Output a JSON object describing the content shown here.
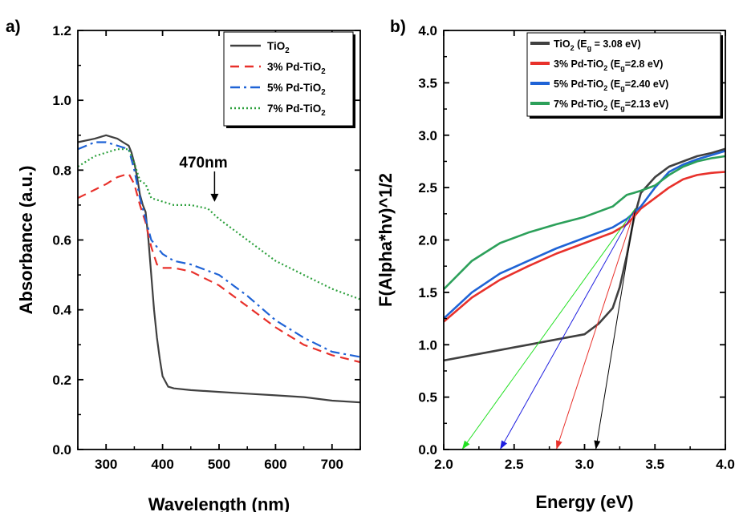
{
  "chart_data": [
    {
      "panel_label": "a)",
      "type": "line",
      "xlabel": "Wavelength (nm)",
      "ylabel": "Absorbance (a.u.)",
      "xlim": [
        250,
        750
      ],
      "ylim": [
        0.0,
        1.2
      ],
      "xticks": [
        300,
        400,
        500,
        600,
        700
      ],
      "yticks": [
        "0.0",
        "0.2",
        "0.4",
        "0.6",
        "0.8",
        "1.0",
        "1.2"
      ],
      "legend_position": "top-right",
      "annotation": {
        "text": "470nm",
        "x": 475,
        "y": 0.7
      },
      "series": [
        {
          "name": "TiO2",
          "color": "#404040",
          "dash": "solid",
          "x": [
            250,
            280,
            300,
            320,
            330,
            340,
            345,
            350,
            355,
            360,
            365,
            370,
            375,
            380,
            385,
            390,
            395,
            400,
            410,
            420,
            450,
            500,
            550,
            600,
            650,
            700,
            750
          ],
          "y": [
            0.88,
            0.89,
            0.9,
            0.89,
            0.88,
            0.87,
            0.85,
            0.82,
            0.78,
            0.73,
            0.7,
            0.68,
            0.6,
            0.5,
            0.4,
            0.32,
            0.26,
            0.21,
            0.18,
            0.175,
            0.17,
            0.165,
            0.16,
            0.155,
            0.15,
            0.14,
            0.135
          ]
        },
        {
          "name": "3% Pd-TiO2",
          "color": "#e8312b",
          "dash": "dashed",
          "x": [
            250,
            300,
            320,
            340,
            350,
            360,
            370,
            380,
            390,
            400,
            420,
            450,
            500,
            550,
            600,
            650,
            700,
            750
          ],
          "y": [
            0.72,
            0.76,
            0.78,
            0.79,
            0.76,
            0.7,
            0.65,
            0.58,
            0.53,
            0.52,
            0.52,
            0.51,
            0.47,
            0.41,
            0.35,
            0.3,
            0.27,
            0.25
          ]
        },
        {
          "name": "5% Pd-TiO2",
          "color": "#1f63d6",
          "dash": "dashdot",
          "x": [
            250,
            280,
            300,
            320,
            340,
            350,
            360,
            370,
            380,
            390,
            400,
            420,
            450,
            500,
            550,
            600,
            650,
            700,
            750
          ],
          "y": [
            0.86,
            0.88,
            0.88,
            0.87,
            0.86,
            0.8,
            0.72,
            0.66,
            0.6,
            0.58,
            0.56,
            0.54,
            0.53,
            0.5,
            0.44,
            0.37,
            0.32,
            0.28,
            0.265
          ]
        },
        {
          "name": "7% Pd-TiO2",
          "color": "#2ca03c",
          "dash": "dotted",
          "x": [
            250,
            280,
            300,
            320,
            340,
            350,
            360,
            370,
            380,
            400,
            420,
            450,
            480,
            500,
            550,
            600,
            650,
            700,
            750
          ],
          "y": [
            0.81,
            0.84,
            0.85,
            0.86,
            0.86,
            0.82,
            0.77,
            0.76,
            0.72,
            0.71,
            0.7,
            0.7,
            0.69,
            0.66,
            0.6,
            0.54,
            0.5,
            0.46,
            0.43
          ]
        }
      ]
    },
    {
      "panel_label": "b)",
      "type": "line",
      "xlabel": "Energy (eV)",
      "ylabel": "F(Alpha*hv)^1/2",
      "xlim": [
        2.0,
        4.0
      ],
      "ylim": [
        0.0,
        4.0
      ],
      "xticks": [
        "2.0",
        "2.5",
        "3.0",
        "3.5",
        "4.0"
      ],
      "yticks": [
        "0.0",
        "0.5",
        "1.0",
        "1.5",
        "2.0",
        "2.5",
        "3.0",
        "3.5",
        "4.0"
      ],
      "legend_position": "top-right",
      "series": [
        {
          "name": "TiO2 (Eg = 3.08 eV)",
          "legend_parts": [
            "TiO",
            "2",
            " (E",
            "g",
            " = 3.08 eV)"
          ],
          "color": "#404040",
          "x": [
            2.0,
            2.2,
            2.4,
            2.6,
            2.8,
            3.0,
            3.1,
            3.2,
            3.25,
            3.3,
            3.35,
            3.4,
            3.5,
            3.6,
            3.7,
            3.8,
            3.9,
            4.0
          ],
          "y": [
            0.85,
            0.9,
            0.95,
            1.0,
            1.05,
            1.1,
            1.2,
            1.35,
            1.55,
            1.85,
            2.2,
            2.45,
            2.6,
            2.7,
            2.75,
            2.8,
            2.83,
            2.87
          ]
        },
        {
          "name": "3% Pd-TiO2 (Eg=2.8 eV)",
          "legend_parts": [
            "3% Pd-TiO",
            "2",
            " (E",
            "g",
            "=2.8 eV)"
          ],
          "color": "#e8312b",
          "x": [
            2.0,
            2.2,
            2.4,
            2.6,
            2.8,
            3.0,
            3.2,
            3.3,
            3.35,
            3.4,
            3.5,
            3.6,
            3.7,
            3.8,
            3.9,
            4.0
          ],
          "y": [
            1.22,
            1.45,
            1.62,
            1.75,
            1.87,
            1.97,
            2.07,
            2.15,
            2.22,
            2.3,
            2.4,
            2.5,
            2.58,
            2.62,
            2.64,
            2.65
          ]
        },
        {
          "name": "5% Pd-TiO2 (Eg=2.40 eV)",
          "legend_parts": [
            "5% Pd-TiO",
            "2",
            " (E",
            "g",
            "=2.40 eV)"
          ],
          "color": "#1f63d6",
          "x": [
            2.0,
            2.2,
            2.4,
            2.6,
            2.8,
            3.0,
            3.2,
            3.3,
            3.4,
            3.5,
            3.6,
            3.7,
            3.8,
            3.9,
            4.0
          ],
          "y": [
            1.25,
            1.5,
            1.68,
            1.8,
            1.92,
            2.02,
            2.12,
            2.2,
            2.32,
            2.5,
            2.65,
            2.72,
            2.77,
            2.81,
            2.85
          ]
        },
        {
          "name": "7% Pd-TiO2 (Eg=2.13 eV)",
          "legend_parts": [
            "7% Pd-TiO",
            "2",
            " (E",
            "g",
            "=2.13 eV)"
          ],
          "color": "#2ca05a",
          "x": [
            2.0,
            2.2,
            2.4,
            2.6,
            2.8,
            3.0,
            3.2,
            3.3,
            3.35,
            3.4,
            3.5,
            3.6,
            3.7,
            3.8,
            3.9,
            4.0
          ],
          "y": [
            1.53,
            1.8,
            1.97,
            2.07,
            2.15,
            2.22,
            2.32,
            2.43,
            2.45,
            2.47,
            2.52,
            2.62,
            2.7,
            2.75,
            2.78,
            2.8
          ]
        }
      ],
      "tauc_lines": [
        {
          "color": "#000000",
          "from": [
            3.36,
            2.3
          ],
          "to": [
            3.08,
            0.0
          ]
        },
        {
          "color": "#e8312b",
          "from": [
            3.36,
            2.3
          ],
          "to": [
            2.8,
            0.0
          ]
        },
        {
          "color": "#1f1fe0",
          "from": [
            3.36,
            2.3
          ],
          "to": [
            2.4,
            0.0
          ]
        },
        {
          "color": "#22e022",
          "from": [
            3.36,
            2.3
          ],
          "to": [
            2.13,
            0.0
          ]
        }
      ]
    }
  ]
}
